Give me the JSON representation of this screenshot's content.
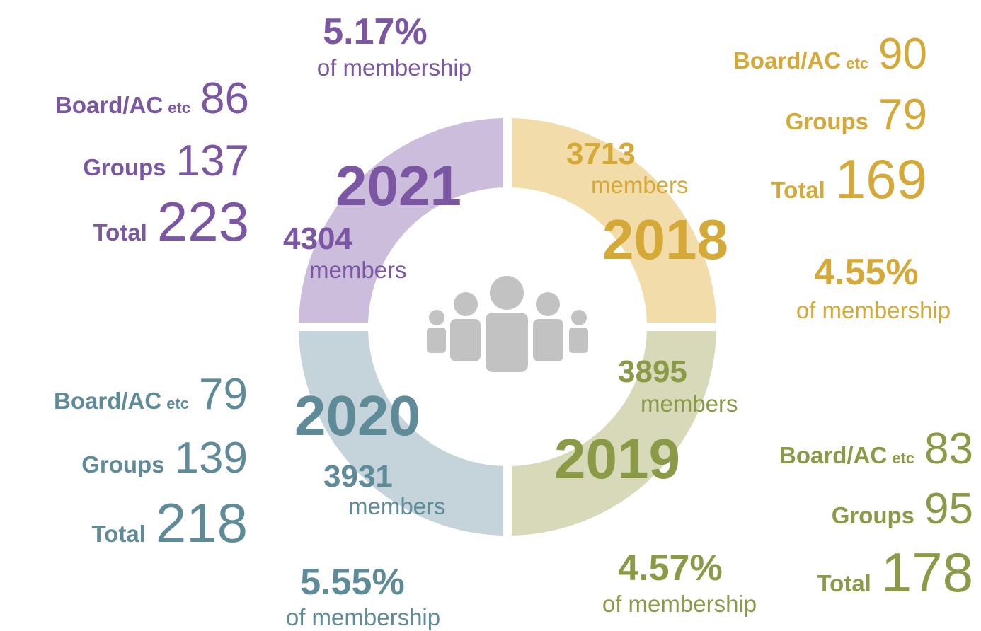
{
  "quadrants": [
    {
      "year": "2021",
      "members": "4304",
      "members_label": "members",
      "percent": "5.17%",
      "percent_label": "of membership",
      "stats": [
        {
          "label": "Board/AC",
          "suffix": "etc",
          "value": "86"
        },
        {
          "label": "Groups",
          "value": "137"
        },
        {
          "label": "Total",
          "value": "223"
        }
      ]
    },
    {
      "year": "2018",
      "members": "3713",
      "members_label": "members",
      "percent": "4.55%",
      "percent_label": "of membership",
      "stats": [
        {
          "label": "Board/AC",
          "suffix": "etc",
          "value": "90"
        },
        {
          "label": "Groups",
          "value": "79"
        },
        {
          "label": "Total",
          "value": "169"
        }
      ]
    },
    {
      "year": "2019",
      "members": "3895",
      "members_label": "members",
      "percent": "4.57%",
      "percent_label": "of membership",
      "stats": [
        {
          "label": "Board/AC",
          "suffix": "etc",
          "value": "83"
        },
        {
          "label": "Groups",
          "value": "95"
        },
        {
          "label": "Total",
          "value": "178"
        }
      ]
    },
    {
      "year": "2020",
      "members": "3931",
      "members_label": "members",
      "percent": "5.55%",
      "percent_label": "of membership",
      "stats": [
        {
          "label": "Board/AC",
          "suffix": "etc",
          "value": "79"
        },
        {
          "label": "Groups",
          "value": "139"
        },
        {
          "label": "Total",
          "value": "218"
        }
      ]
    }
  ]
}
